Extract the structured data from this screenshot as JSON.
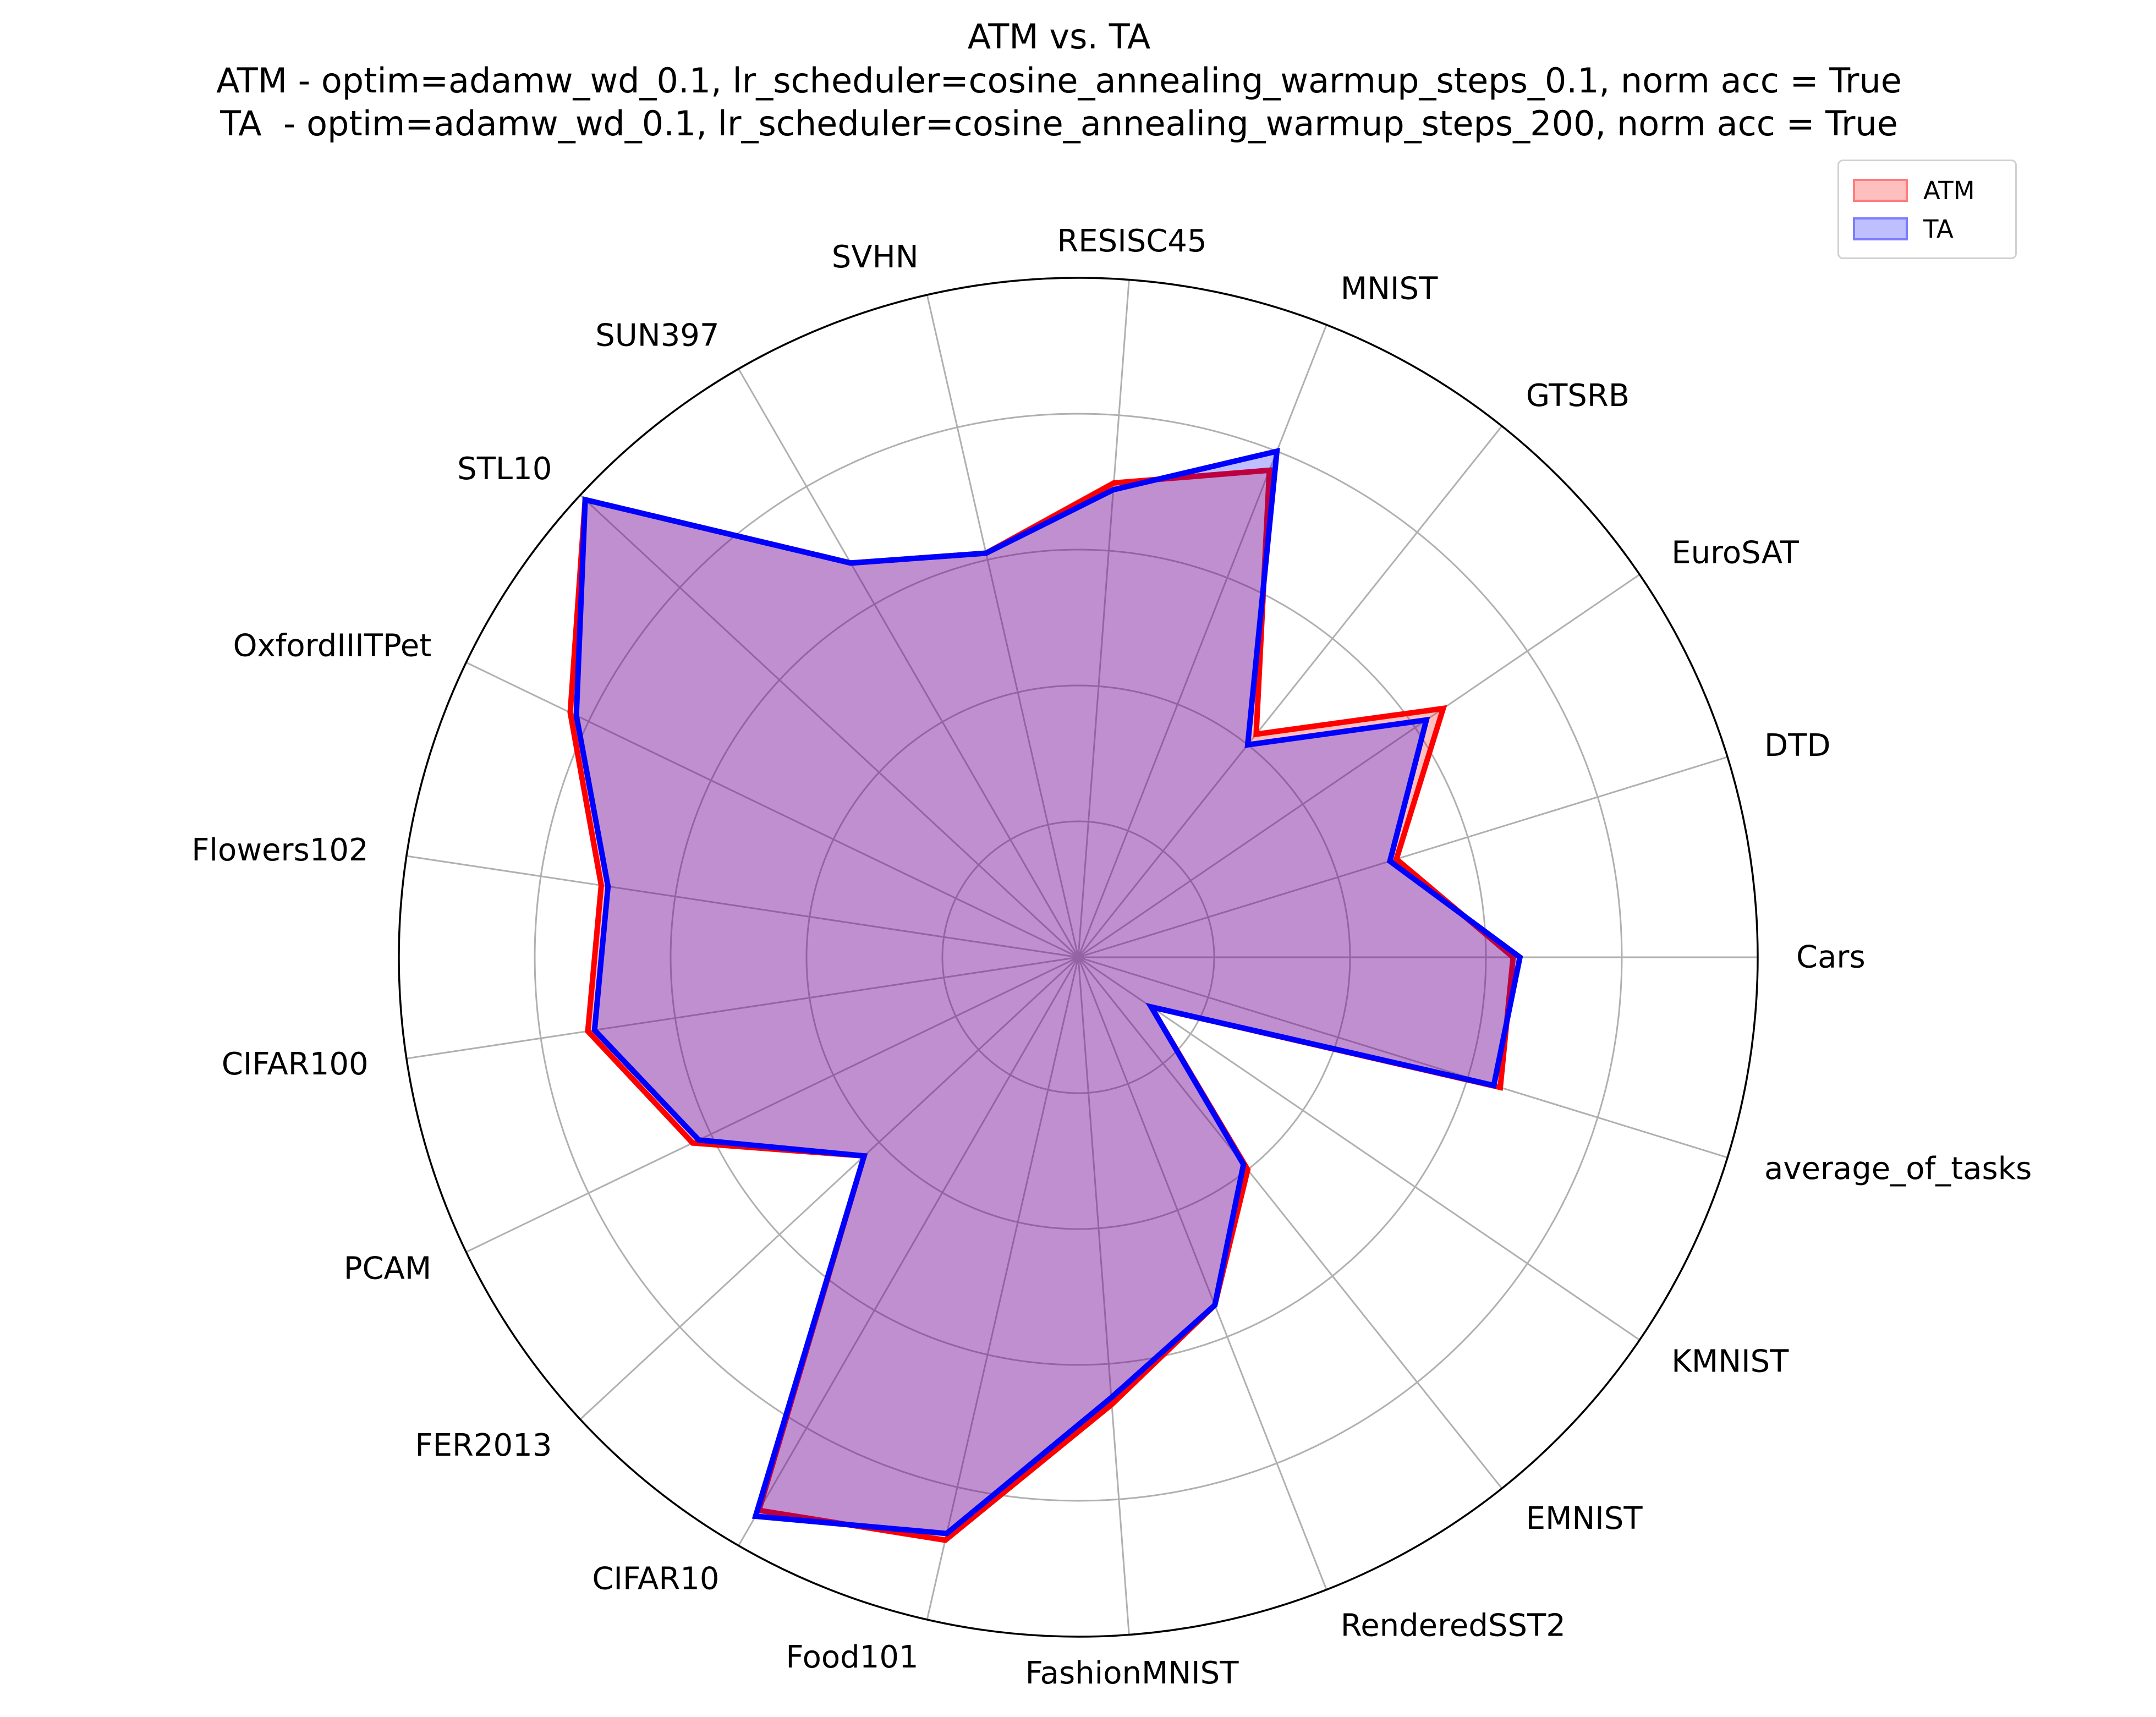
{
  "title": "ATM vs. TA",
  "subtitle_lines": [
    "ATM - optim=adamw_wd_0.1, lr_scheduler=cosine_annealing_warmup_steps_0.1, norm acc = True",
    "TA  - optim=adamw_wd_0.1, lr_scheduler=cosine_annealing_warmup_steps_200, norm acc = True"
  ],
  "legend_placement": "top-right",
  "grid": true,
  "chart_data": {
    "type": "radar",
    "categories": [
      "Cars",
      "DTD",
      "EuroSAT",
      "GTSRB",
      "MNIST",
      "RESISC45",
      "SVHN",
      "SUN397",
      "STL10",
      "OxfordIIITPet",
      "Flowers102",
      "CIFAR100",
      "PCAM",
      "FER2013",
      "CIFAR10",
      "Food101",
      "FashionMNIST",
      "RenderedSST2",
      "EMNIST",
      "KMNIST",
      "average_of_tasks"
    ],
    "rlim": [
      0,
      1
    ],
    "rgrid": [
      0.2,
      0.4,
      0.6,
      0.8
    ],
    "series": [
      {
        "name": "ATM",
        "color": "#ff0000",
        "values": [
          0.64,
          0.49,
          0.65,
          0.42,
          0.77,
          0.7,
          0.61,
          0.67,
          0.99,
          0.83,
          0.71,
          0.73,
          0.63,
          0.43,
          0.94,
          0.88,
          0.66,
          0.55,
          0.4,
          0.13,
          0.65
        ]
      },
      {
        "name": "TA",
        "color": "#0000ff",
        "values": [
          0.65,
          0.48,
          0.62,
          0.4,
          0.8,
          0.69,
          0.61,
          0.67,
          0.99,
          0.82,
          0.7,
          0.72,
          0.62,
          0.43,
          0.95,
          0.87,
          0.65,
          0.55,
          0.39,
          0.13,
          0.64
        ]
      }
    ]
  }
}
